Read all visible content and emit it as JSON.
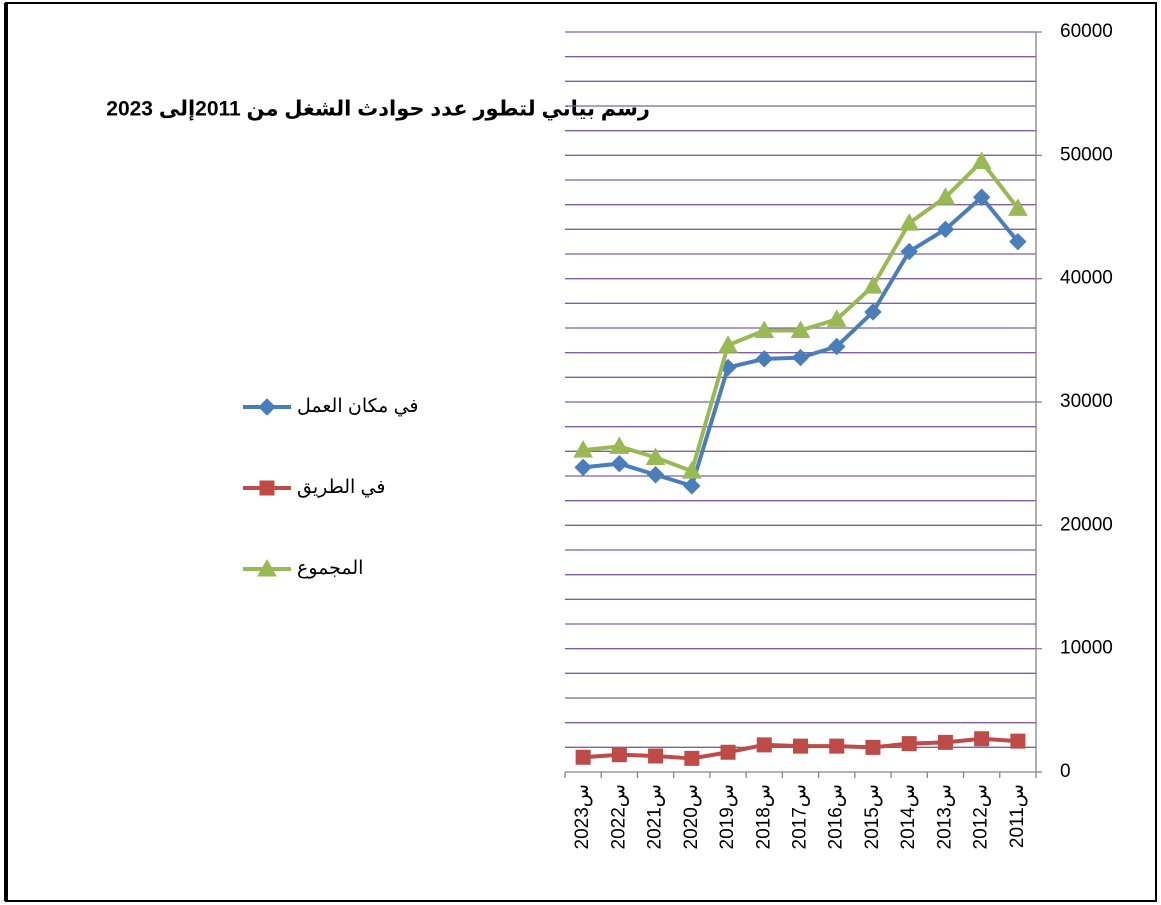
{
  "chart_data": {
    "type": "line",
    "title": "رسم بياني لتطور عدد حوادث الشغل من  2011إلى 2023",
    "categories": [
      "2011س",
      "2012س",
      "2013س",
      "2014س",
      "2015س",
      "2016س",
      "2017س",
      "2018س",
      "2019س",
      "2020س",
      "2021س",
      "2022س",
      "2023س"
    ],
    "x_reversed": true,
    "y_axis_side": "right",
    "series": [
      {
        "name": "في مكان العمل",
        "color": "#4a7ebb",
        "marker": "diamond",
        "values": [
          43000,
          46600,
          44000,
          42200,
          37300,
          34500,
          33600,
          33500,
          32800,
          23200,
          24100,
          25000,
          24700
        ]
      },
      {
        "name": "في الطريق",
        "color": "#be4b48",
        "marker": "square",
        "values": [
          2500,
          2700,
          2400,
          2300,
          2000,
          2100,
          2100,
          2200,
          1600,
          1100,
          1300,
          1400,
          1200
        ]
      },
      {
        "name": "المجموع",
        "color": "#98b954",
        "marker": "triangle",
        "values": [
          45700,
          49500,
          46600,
          44500,
          39400,
          36700,
          35800,
          35800,
          34600,
          24400,
          25500,
          26400,
          26100
        ]
      }
    ],
    "ylim": [
      0,
      60000
    ],
    "yticks": [
      0,
      10000,
      20000,
      30000,
      40000,
      50000,
      60000
    ],
    "ygrid": [
      2000,
      4000,
      6000,
      8000,
      10000,
      12000,
      14000,
      16000,
      18000,
      20000,
      22000,
      24000,
      26000,
      28000,
      30000,
      32000,
      34000,
      36000,
      38000,
      40000,
      42000,
      44000,
      46000,
      48000,
      50000,
      52000,
      54000,
      56000,
      58000,
      60000
    ],
    "grid_color": "#7f5f9f",
    "legend": "left"
  }
}
